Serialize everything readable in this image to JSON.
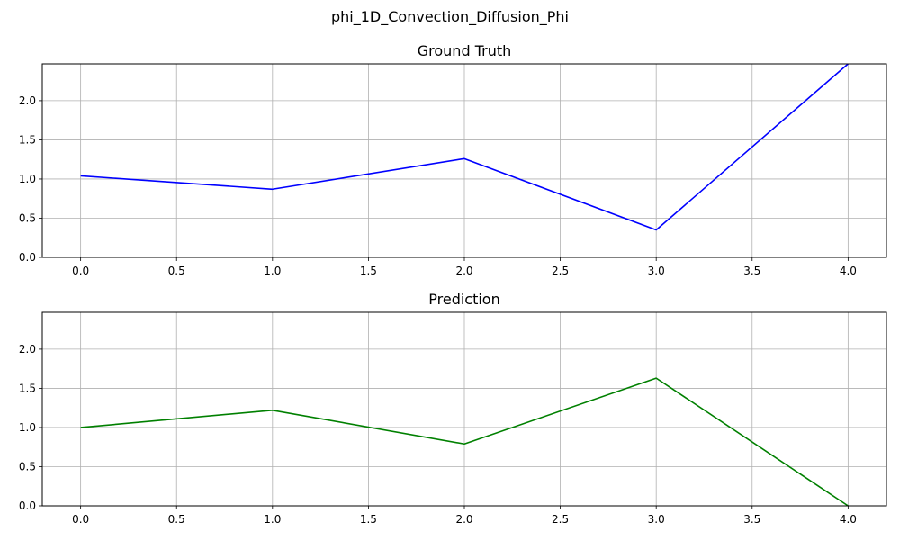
{
  "figure": {
    "suptitle": "phi_1D_Convection_Diffusion_Phi"
  },
  "chart_data": [
    {
      "type": "line",
      "title": "Ground Truth",
      "xlabel": "",
      "ylabel": "",
      "x": [
        0,
        1,
        2,
        3,
        4
      ],
      "series": [
        {
          "values": [
            1.04,
            0.87,
            1.26,
            0.35,
            2.47
          ],
          "color": "#0000ff"
        }
      ],
      "xlim": [
        -0.2,
        4.2
      ],
      "ylim": [
        0,
        2.47
      ],
      "xticks": [
        0.0,
        0.5,
        1.0,
        1.5,
        2.0,
        2.5,
        3.0,
        3.5,
        4.0
      ],
      "yticks": [
        0.0,
        0.5,
        1.0,
        1.5,
        2.0
      ],
      "tick_labels_x": [
        "0.0",
        "0.5",
        "1.0",
        "1.5",
        "2.0",
        "2.5",
        "3.0",
        "3.5",
        "4.0"
      ],
      "tick_labels_y": [
        "0.0",
        "0.5",
        "1.0",
        "1.5",
        "2.0"
      ],
      "grid": true
    },
    {
      "type": "line",
      "title": "Prediction",
      "xlabel": "",
      "ylabel": "",
      "x": [
        0,
        1,
        2,
        3,
        4
      ],
      "series": [
        {
          "values": [
            1.0,
            1.22,
            0.79,
            1.63,
            0.0
          ],
          "color": "#008000"
        }
      ],
      "xlim": [
        -0.2,
        4.2
      ],
      "ylim": [
        0,
        2.47
      ],
      "xticks": [
        0.0,
        0.5,
        1.0,
        1.5,
        2.0,
        2.5,
        3.0,
        3.5,
        4.0
      ],
      "yticks": [
        0.0,
        0.5,
        1.0,
        1.5,
        2.0
      ],
      "tick_labels_x": [
        "0.0",
        "0.5",
        "1.0",
        "1.5",
        "2.0",
        "2.5",
        "3.0",
        "3.5",
        "4.0"
      ],
      "tick_labels_y": [
        "0.0",
        "0.5",
        "1.0",
        "1.5",
        "2.0"
      ],
      "grid": true
    }
  ]
}
